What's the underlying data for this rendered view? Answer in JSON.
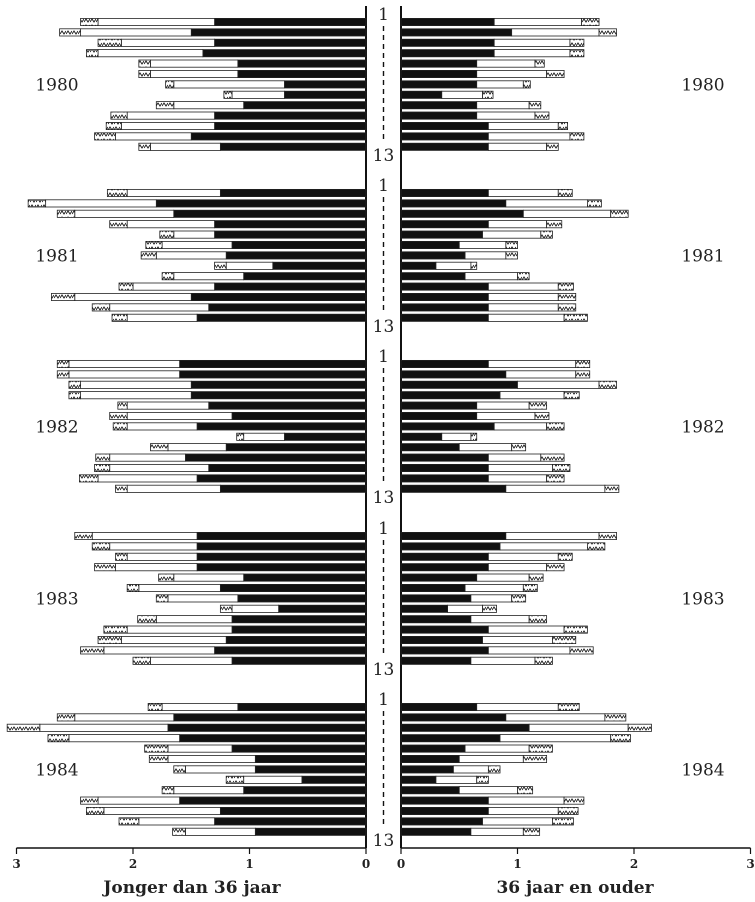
{
  "chart_data": {
    "type": "bar",
    "orientation": "horizontal",
    "layout": "back-to-back",
    "periods_label_first": "1",
    "periods_label_last": "13",
    "panels": [
      {
        "side": "left",
        "axis_title": "Jonger dan 36 jaar",
        "xlim": [
          0,
          3
        ],
        "x_ticks": [
          3,
          2,
          1,
          0
        ],
        "reversed": true
      },
      {
        "side": "right",
        "axis_title": "36 jaar en ouder",
        "xlim": [
          0,
          3
        ],
        "x_ticks": [
          0,
          1,
          2,
          3
        ],
        "reversed": false
      }
    ],
    "stack_segments": [
      "solid",
      "open",
      "hatched"
    ],
    "segment_colors": {
      "solid": "#111111",
      "open": "#ffffff",
      "hatched": "#bdbdbd",
      "outline": "#222222"
    },
    "years": [
      {
        "year": "1980",
        "left": [
          [
            1.3,
            1.0,
            0.15
          ],
          [
            1.5,
            0.95,
            0.18
          ],
          [
            1.3,
            0.8,
            0.2
          ],
          [
            1.4,
            0.9,
            0.1
          ],
          [
            1.1,
            0.75,
            0.1
          ],
          [
            1.1,
            0.75,
            0.1
          ],
          [
            0.7,
            0.95,
            0.07
          ],
          [
            0.7,
            0.45,
            0.07
          ],
          [
            1.05,
            0.6,
            0.15
          ],
          [
            1.3,
            0.75,
            0.14
          ],
          [
            1.3,
            0.8,
            0.13
          ],
          [
            1.5,
            0.65,
            0.18
          ],
          [
            1.25,
            0.6,
            0.1
          ]
        ],
        "right": [
          [
            0.8,
            0.75,
            0.15
          ],
          [
            0.95,
            0.75,
            0.15
          ],
          [
            0.8,
            0.65,
            0.12
          ],
          [
            0.8,
            0.65,
            0.12
          ],
          [
            0.65,
            0.5,
            0.08
          ],
          [
            0.65,
            0.6,
            0.15
          ],
          [
            0.65,
            0.4,
            0.06
          ],
          [
            0.35,
            0.35,
            0.09
          ],
          [
            0.65,
            0.45,
            0.1
          ],
          [
            0.65,
            0.5,
            0.12
          ],
          [
            0.75,
            0.6,
            0.08
          ],
          [
            0.75,
            0.7,
            0.12
          ],
          [
            0.75,
            0.5,
            0.1
          ]
        ]
      },
      {
        "year": "1981",
        "left": [
          [
            1.25,
            0.8,
            0.17
          ],
          [
            1.8,
            0.95,
            0.15
          ],
          [
            1.65,
            0.85,
            0.15
          ],
          [
            1.3,
            0.75,
            0.15
          ],
          [
            1.3,
            0.35,
            0.12
          ],
          [
            1.15,
            0.6,
            0.14
          ],
          [
            1.2,
            0.6,
            0.13
          ],
          [
            0.8,
            0.4,
            0.1
          ],
          [
            1.05,
            0.6,
            0.1
          ],
          [
            1.3,
            0.7,
            0.12
          ],
          [
            1.5,
            1.0,
            0.2
          ],
          [
            1.35,
            0.85,
            0.15
          ],
          [
            1.45,
            0.6,
            0.13
          ]
        ],
        "right": [
          [
            0.75,
            0.6,
            0.12
          ],
          [
            0.9,
            0.7,
            0.12
          ],
          [
            1.05,
            0.75,
            0.15
          ],
          [
            0.75,
            0.5,
            0.13
          ],
          [
            0.7,
            0.5,
            0.1
          ],
          [
            0.5,
            0.4,
            0.1
          ],
          [
            0.55,
            0.35,
            0.1
          ],
          [
            0.3,
            0.3,
            0.05
          ],
          [
            0.55,
            0.45,
            0.1
          ],
          [
            0.75,
            0.6,
            0.13
          ],
          [
            0.75,
            0.6,
            0.15
          ],
          [
            0.75,
            0.6,
            0.15
          ],
          [
            0.75,
            0.65,
            0.2
          ]
        ]
      },
      {
        "year": "1982",
        "left": [
          [
            1.6,
            0.95,
            0.1
          ],
          [
            1.6,
            0.95,
            0.1
          ],
          [
            1.5,
            0.95,
            0.1
          ],
          [
            1.5,
            0.95,
            0.1
          ],
          [
            1.35,
            0.7,
            0.08
          ],
          [
            1.15,
            0.9,
            0.15
          ],
          [
            1.45,
            0.6,
            0.12
          ],
          [
            0.7,
            0.35,
            0.06
          ],
          [
            1.2,
            0.5,
            0.15
          ],
          [
            1.55,
            0.65,
            0.12
          ],
          [
            1.35,
            0.85,
            0.13
          ],
          [
            1.45,
            0.85,
            0.16
          ],
          [
            1.25,
            0.8,
            0.1
          ]
        ],
        "right": [
          [
            0.75,
            0.75,
            0.12
          ],
          [
            0.9,
            0.6,
            0.12
          ],
          [
            1.0,
            0.7,
            0.15
          ],
          [
            0.85,
            0.55,
            0.13
          ],
          [
            0.65,
            0.45,
            0.15
          ],
          [
            0.65,
            0.5,
            0.12
          ],
          [
            0.8,
            0.45,
            0.15
          ],
          [
            0.35,
            0.25,
            0.05
          ],
          [
            0.5,
            0.45,
            0.12
          ],
          [
            0.75,
            0.45,
            0.2
          ],
          [
            0.75,
            0.55,
            0.15
          ],
          [
            0.75,
            0.5,
            0.15
          ],
          [
            0.9,
            0.85,
            0.12
          ]
        ]
      },
      {
        "year": "1983",
        "left": [
          [
            1.45,
            0.9,
            0.15
          ],
          [
            1.45,
            0.75,
            0.15
          ],
          [
            1.45,
            0.6,
            0.1
          ],
          [
            1.45,
            0.7,
            0.18
          ],
          [
            1.05,
            0.6,
            0.13
          ],
          [
            1.25,
            0.7,
            0.1
          ],
          [
            1.1,
            0.6,
            0.1
          ],
          [
            0.75,
            0.4,
            0.1
          ],
          [
            1.15,
            0.65,
            0.16
          ],
          [
            1.15,
            0.9,
            0.2
          ],
          [
            1.2,
            0.9,
            0.2
          ],
          [
            1.3,
            0.95,
            0.2
          ],
          [
            1.15,
            0.7,
            0.15
          ]
        ],
        "right": [
          [
            0.9,
            0.8,
            0.15
          ],
          [
            0.85,
            0.75,
            0.15
          ],
          [
            0.75,
            0.6,
            0.12
          ],
          [
            0.75,
            0.5,
            0.15
          ],
          [
            0.65,
            0.45,
            0.12
          ],
          [
            0.55,
            0.5,
            0.12
          ],
          [
            0.6,
            0.35,
            0.12
          ],
          [
            0.4,
            0.3,
            0.12
          ],
          [
            0.6,
            0.5,
            0.15
          ],
          [
            0.75,
            0.65,
            0.2
          ],
          [
            0.7,
            0.6,
            0.2
          ],
          [
            0.75,
            0.7,
            0.2
          ],
          [
            0.6,
            0.55,
            0.15
          ]
        ]
      },
      {
        "year": "1984",
        "left": [
          [
            1.1,
            0.65,
            0.12
          ],
          [
            1.65,
            0.85,
            0.15
          ],
          [
            1.7,
            1.1,
            0.28
          ],
          [
            1.6,
            0.95,
            0.18
          ],
          [
            1.15,
            0.55,
            0.2
          ],
          [
            0.95,
            0.75,
            0.16
          ],
          [
            0.95,
            0.6,
            0.1
          ],
          [
            0.55,
            0.5,
            0.15
          ],
          [
            1.05,
            0.6,
            0.1
          ],
          [
            1.6,
            0.7,
            0.15
          ],
          [
            1.25,
            1.0,
            0.15
          ],
          [
            1.3,
            0.65,
            0.17
          ],
          [
            0.95,
            0.6,
            0.11
          ]
        ],
        "right": [
          [
            0.65,
            0.7,
            0.18
          ],
          [
            0.9,
            0.85,
            0.18
          ],
          [
            1.1,
            0.85,
            0.2
          ],
          [
            0.85,
            0.95,
            0.17
          ],
          [
            0.55,
            0.55,
            0.2
          ],
          [
            0.5,
            0.55,
            0.2
          ],
          [
            0.45,
            0.3,
            0.1
          ],
          [
            0.3,
            0.35,
            0.1
          ],
          [
            0.5,
            0.5,
            0.13
          ],
          [
            0.75,
            0.65,
            0.17
          ],
          [
            0.75,
            0.6,
            0.17
          ],
          [
            0.7,
            0.6,
            0.18
          ],
          [
            0.6,
            0.45,
            0.14
          ]
        ]
      }
    ]
  }
}
